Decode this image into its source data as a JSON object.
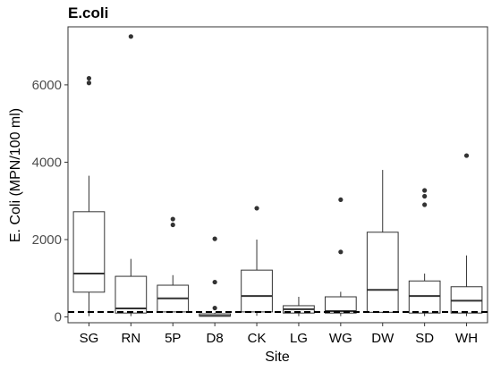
{
  "chart_data": {
    "type": "box",
    "title": "E.coli",
    "xlabel": "Site",
    "ylabel": "E. Coli (MPN/100 ml)",
    "ylim": [
      -150,
      7500
    ],
    "yticks": [
      0,
      2000,
      4000,
      6000
    ],
    "reference_line": {
      "y": 126,
      "style": "dashed"
    },
    "grid": false,
    "colors": {
      "box_fill": "#ffffff",
      "stroke": "#333333",
      "outlier": "#333333",
      "axis": "#333333"
    },
    "categories": [
      "SG",
      "RN",
      "5P",
      "D8",
      "CK",
      "LG",
      "WG",
      "DW",
      "SD",
      "WH"
    ],
    "boxes": [
      {
        "site": "SG",
        "min": 20,
        "q1": 640,
        "median": 1120,
        "q3": 2720,
        "max": 3650,
        "outliers": [
          6050,
          6170
        ]
      },
      {
        "site": "RN",
        "min": 20,
        "q1": 100,
        "median": 220,
        "q3": 1050,
        "max": 1500,
        "outliers": [
          7250
        ]
      },
      {
        "site": "5P",
        "min": 130,
        "q1": 130,
        "median": 480,
        "q3": 820,
        "max": 1080,
        "outliers": [
          2380,
          2530
        ]
      },
      {
        "site": "D8",
        "min": 20,
        "q1": 20,
        "median": 30,
        "q3": 80,
        "max": 110,
        "outliers": [
          230,
          900,
          2020
        ]
      },
      {
        "site": "CK",
        "min": 30,
        "q1": 130,
        "median": 540,
        "q3": 1210,
        "max": 2000,
        "outliers": [
          2810
        ]
      },
      {
        "site": "LG",
        "min": 20,
        "q1": 100,
        "median": 200,
        "q3": 290,
        "max": 520,
        "outliers": []
      },
      {
        "site": "WG",
        "min": 20,
        "q1": 100,
        "median": 150,
        "q3": 520,
        "max": 650,
        "outliers": [
          1680,
          3030
        ]
      },
      {
        "site": "DW",
        "min": 100,
        "q1": 120,
        "median": 700,
        "q3": 2190,
        "max": 3800,
        "outliers": []
      },
      {
        "site": "SD",
        "min": 20,
        "q1": 100,
        "median": 540,
        "q3": 930,
        "max": 1120,
        "outliers": [
          2900,
          3120,
          3270
        ]
      },
      {
        "site": "WH",
        "min": 20,
        "q1": 100,
        "median": 420,
        "q3": 780,
        "max": 1590,
        "outliers": [
          4170
        ]
      }
    ]
  }
}
